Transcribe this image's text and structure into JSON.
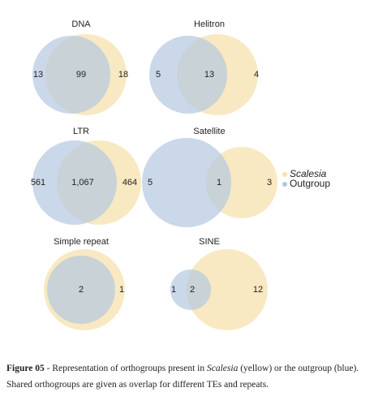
{
  "chart_data": [
    {
      "type": "venn",
      "title": "DNA",
      "values": [
        13,
        99,
        18
      ]
    },
    {
      "type": "venn",
      "title": "Helitron",
      "values": [
        5,
        13,
        4
      ]
    },
    {
      "type": "venn",
      "title": "LTR",
      "values": [
        561,
        1067,
        464
      ],
      "value_labels": [
        "561",
        "1,067",
        "464"
      ]
    },
    {
      "type": "venn",
      "title": "Satellite",
      "values": [
        5,
        1,
        3
      ]
    },
    {
      "type": "venn",
      "title": "Simple repeat",
      "values": [
        null,
        2,
        1
      ]
    },
    {
      "type": "venn",
      "title": "SINE",
      "values": [
        1,
        2,
        12
      ]
    }
  ],
  "legend": [
    {
      "name": "Scalesia",
      "color": "#f6e2ad"
    },
    {
      "name": "Outgroup",
      "color": "#b3c7e0"
    }
  ],
  "caption": {
    "label": "Figure 05",
    "text1": " - Representation of orthogroups present in ",
    "italic": "Scalesia",
    "text2": " (yellow) or the outgroup (blue). Shared orthogroups are given as overlap for different TEs and repeats."
  }
}
